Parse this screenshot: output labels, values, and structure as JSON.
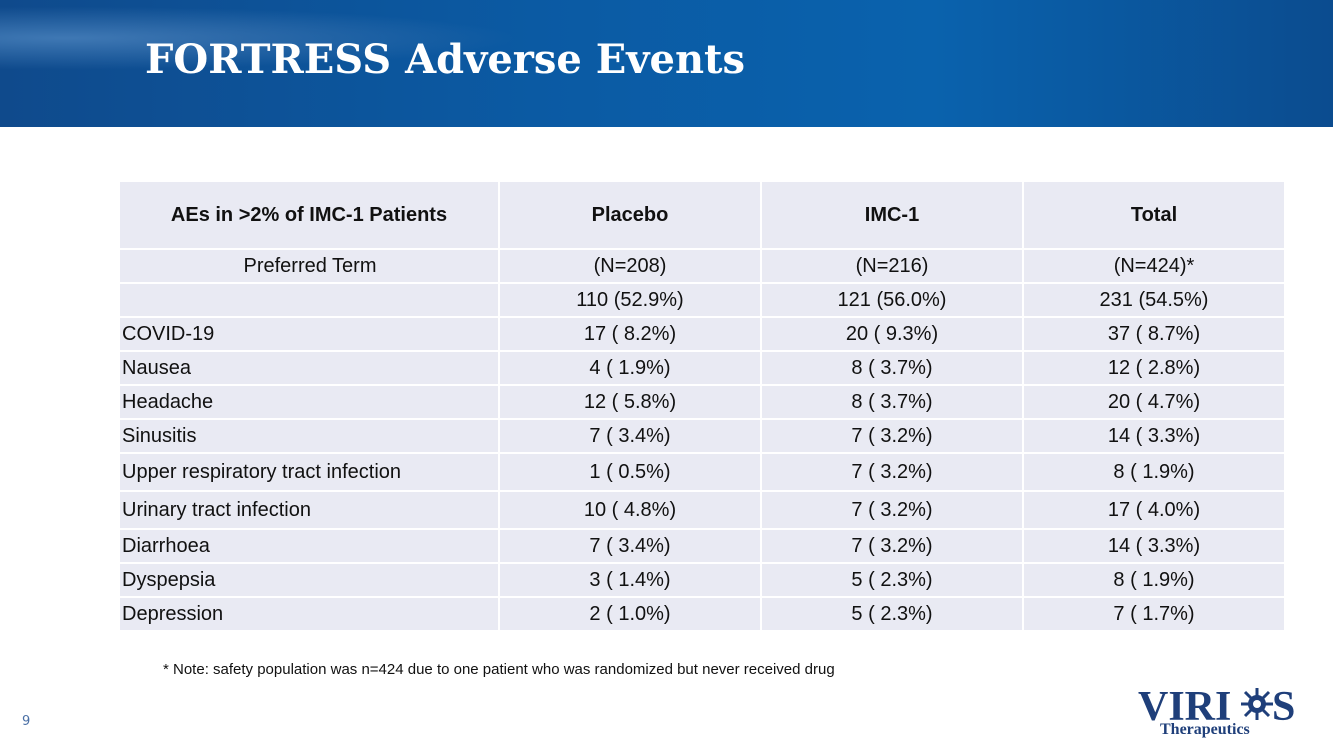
{
  "header": {
    "title": "FORTRESS Adverse Events"
  },
  "table": {
    "header": [
      "AEs in >2% of IMC-1 Patients",
      "Placebo",
      "IMC-1",
      "Total"
    ],
    "rows": [
      [
        "Preferred Term",
        "(N=208)",
        "(N=216)",
        "(N=424)*"
      ],
      [
        null,
        "110 (52.9%)",
        "121 (56.0%)",
        "231 (54.5%)"
      ],
      [
        "COVID-19",
        "17 ( 8.2%)",
        "20 ( 9.3%)",
        "37 ( 8.7%)"
      ],
      [
        "Nausea",
        "4 ( 1.9%)",
        "8 ( 3.7%)",
        "12 ( 2.8%)"
      ],
      [
        "Headache",
        "12 ( 5.8%)",
        "8 ( 3.7%)",
        "20 ( 4.7%)"
      ],
      [
        "Sinusitis",
        "7 ( 3.4%)",
        "7 ( 3.2%)",
        "14 ( 3.3%)"
      ],
      [
        "Upper respiratory tract infection",
        "1 ( 0.5%)",
        "7 ( 3.2%)",
        "8 ( 1.9%)"
      ],
      [
        "Urinary tract infection",
        "10 ( 4.8%)",
        "7 ( 3.2%)",
        "17 ( 4.0%)"
      ],
      [
        "Diarrhoea",
        "7 ( 3.4%)",
        "7 ( 3.2%)",
        "14 ( 3.3%)"
      ],
      [
        "Dyspepsia",
        "3 ( 1.4%)",
        "5 ( 2.3%)",
        "8 ( 1.9%)"
      ],
      [
        "Depression",
        "2 ( 1.0%)",
        "5 ( 2.3%)",
        "7 ( 1.7%)"
      ]
    ]
  },
  "note": "* Note: safety population was n=424 due to one patient who was randomized but never received drug",
  "page_number": "9",
  "logo": {
    "left": "VIRI",
    "right": "S",
    "tagline": "Therapeutics"
  }
}
